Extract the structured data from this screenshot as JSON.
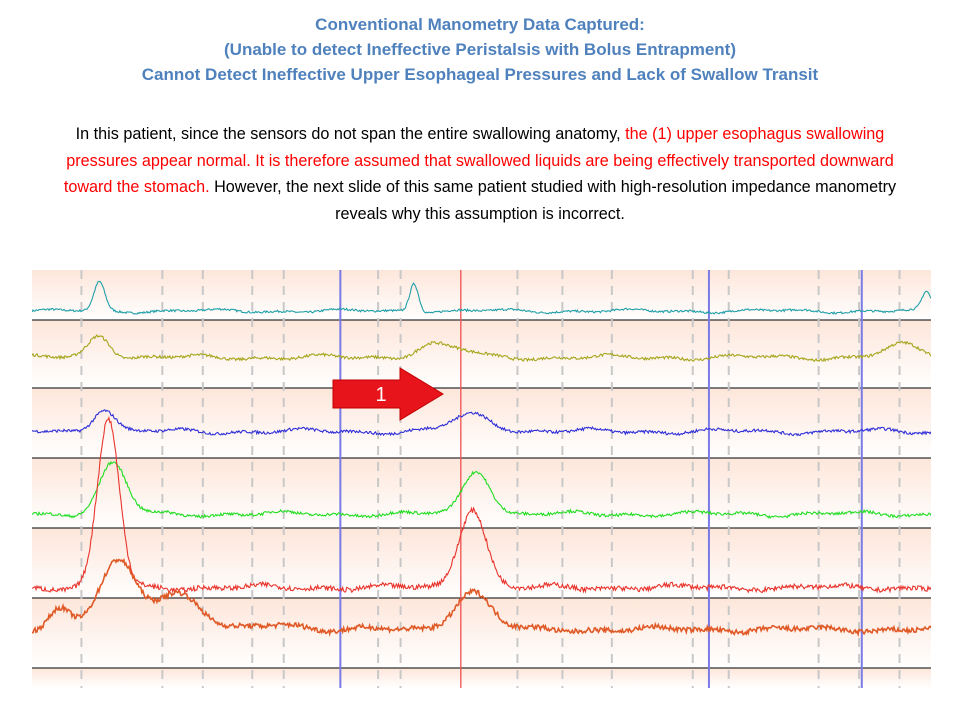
{
  "header": {
    "title_lines": [
      "Conventional Manometry Data Captured:",
      "(Unable to detect Ineffective Peristalsis with Bolus Entrapment)",
      "Cannot Detect Ineffective Upper Esophageal Pressures and Lack of Swallow Transit"
    ]
  },
  "description": {
    "part1": "In this patient, since the sensors do not span the entire swallowing anatomy, ",
    "part2_red": "the (1) upper esophagus swallowing pressures appear normal. It is therefore assumed that swallowed liquids are being effectively transported downward toward the stomach.",
    "part3": " However, the next slide of this same patient studied with high-resolution impedance manometry reveals why this assumption is incorrect."
  },
  "chart_data": {
    "type": "line",
    "title": "",
    "xlabel": "",
    "ylabel": "",
    "grid": true,
    "channels": [
      {
        "color": "#21a0a8",
        "baseline_y": 0.82,
        "peaks": [
          {
            "x": 0.075,
            "h": 0.95,
            "w": 0.006
          },
          {
            "x": 0.425,
            "h": 0.95,
            "w": 0.005
          },
          {
            "x": 0.995,
            "h": 0.6,
            "w": 0.005
          }
        ]
      },
      {
        "color": "#a6a61e",
        "baseline_y": 0.55,
        "peaks": [
          {
            "x": 0.075,
            "h": 0.55,
            "w": 0.012
          },
          {
            "x": 0.44,
            "h": 0.25,
            "w": 0.015
          },
          {
            "x": 0.47,
            "h": 0.2,
            "w": 0.02
          },
          {
            "x": 0.97,
            "h": 0.3,
            "w": 0.02
          }
        ]
      },
      {
        "color": "#2f2fd8",
        "baseline_y": 0.62,
        "peaks": [
          {
            "x": 0.08,
            "h": 0.55,
            "w": 0.012
          },
          {
            "x": 0.49,
            "h": 0.4,
            "w": 0.022
          }
        ]
      },
      {
        "color": "#22dd22",
        "baseline_y": 0.8,
        "peaks": [
          {
            "x": 0.09,
            "h": 1.2,
            "w": 0.015
          },
          {
            "x": 0.495,
            "h": 1.05,
            "w": 0.015
          }
        ]
      },
      {
        "color": "#e8342c",
        "baseline_y": 0.85,
        "peaks": [
          {
            "x": 0.085,
            "h": 4.0,
            "w": 0.012
          },
          {
            "x": 0.49,
            "h": 1.9,
            "w": 0.015
          }
        ]
      },
      {
        "color": "#e05a28",
        "baseline_y": 0.45,
        "peaks": [
          {
            "x": 0.03,
            "h": 0.5,
            "w": 0.012
          },
          {
            "x": 0.095,
            "h": 1.6,
            "w": 0.02
          },
          {
            "x": 0.16,
            "h": 0.9,
            "w": 0.025
          },
          {
            "x": 0.49,
            "h": 0.9,
            "w": 0.02
          },
          {
            "x": 0.28,
            "h": 0.15,
            "w": 0.02
          }
        ]
      }
    ],
    "dashed_markers_x": [
      0.055,
      0.145,
      0.19,
      0.245,
      0.28,
      0.385,
      0.41,
      0.54,
      0.59,
      0.645,
      0.735,
      0.775,
      0.875,
      0.92,
      0.965
    ],
    "blue_markers_x": [
      0.343,
      0.753,
      0.923
    ],
    "red_marker_x": [
      0.477
    ],
    "annotation": {
      "label": "1",
      "color": "#e8141c"
    }
  }
}
